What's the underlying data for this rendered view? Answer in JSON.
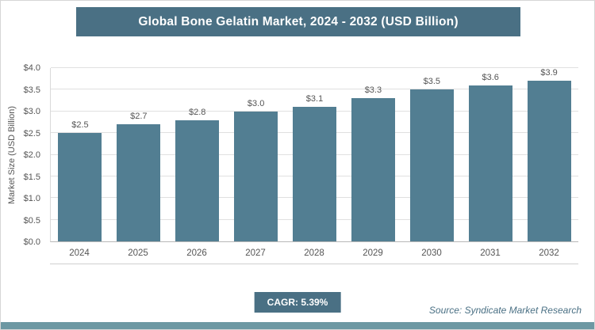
{
  "header": {
    "title": "Global Bone Gelatin Market, 2024 - 2032 (USD Billion)"
  },
  "chart_data": {
    "type": "bar",
    "title": "Global Bone Gelatin Market, 2024 - 2032 (USD Billion)",
    "categories": [
      "2024",
      "2025",
      "2026",
      "2027",
      "2028",
      "2029",
      "2030",
      "2031",
      "2032"
    ],
    "values": [
      2.5,
      2.7,
      2.8,
      3.0,
      3.1,
      3.3,
      3.5,
      3.6,
      3.9
    ],
    "bar_labels": [
      "$2.5",
      "$2.7",
      "$2.8",
      "$3.0",
      "$3.1",
      "$3.3",
      "$3.5",
      "$3.6",
      "$3.9"
    ],
    "xlabel": "",
    "ylabel": "Market Size (USD Billion)",
    "ylim": [
      0,
      4.0
    ],
    "yticks": [
      "$0.0",
      "$0.5",
      "$1.0",
      "$1.5",
      "$2.0",
      "$2.5",
      "$3.0",
      "$3.5",
      "$4.0"
    ],
    "grid": true,
    "legend": "none",
    "bar_color": "#527e92"
  },
  "footer": {
    "cagr_label": "CAGR: 5.39%",
    "source": "Source: Syndicate Market Research"
  },
  "colors": {
    "accent_dark": "#4a7084",
    "bar": "#527e92",
    "strip": "#6d98a3",
    "grid": "#e0e0e0"
  }
}
